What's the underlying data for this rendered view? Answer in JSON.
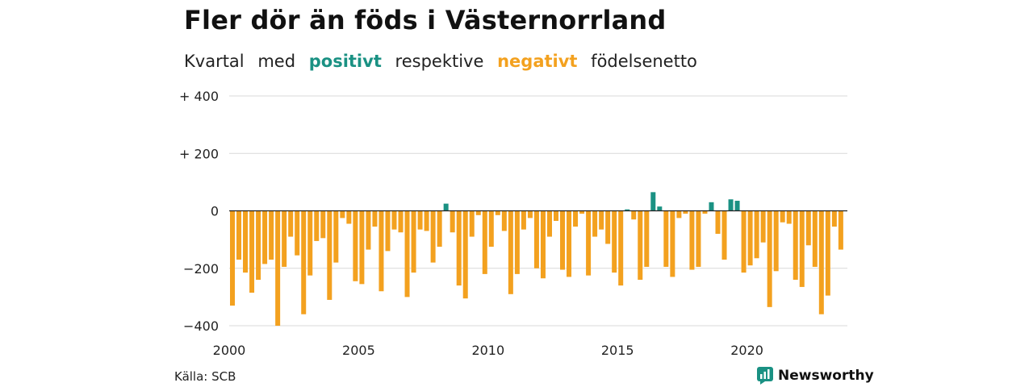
{
  "header": {
    "title": "Fler dör än föds i Västernorrland",
    "subtitle_parts": [
      "Kvartal",
      "med",
      "positivt",
      "respektive",
      "negativt",
      "födelsenetto"
    ]
  },
  "colors": {
    "positive": "#1a9183",
    "negative": "#f3a11f",
    "grid": "#d9d9d9",
    "zero_line": "#222222"
  },
  "footer": {
    "source": "Källa: SCB",
    "brand": "Newsworthy",
    "brand_icon": "newsworthy-logo-icon"
  },
  "chart_data": {
    "type": "bar",
    "title": "Fler dör än föds i Västernorrland",
    "subtitle": "Kvartal med positivt respektive negativt födelsenetto",
    "xlabel": "",
    "ylabel": "",
    "x_start": 2000,
    "periods_per_year": 4,
    "ylim": [
      -400,
      400
    ],
    "yticks": [
      400,
      200,
      0,
      -200,
      -400
    ],
    "ytick_labels": [
      "+ 400",
      "+ 200",
      "0",
      "−200",
      "−400"
    ],
    "xticks": [
      2000,
      2005,
      2010,
      2015,
      2020
    ],
    "xtick_labels": [
      "2000",
      "2005",
      "2010",
      "2015",
      "2020"
    ],
    "grid": true,
    "values": [
      -330,
      -170,
      -215,
      -285,
      -240,
      -185,
      -170,
      -400,
      -195,
      -90,
      -155,
      -360,
      -225,
      -105,
      -95,
      -310,
      -180,
      -25,
      -45,
      -245,
      -255,
      -135,
      -55,
      -280,
      -140,
      -65,
      -75,
      -300,
      -215,
      -65,
      -70,
      -180,
      -125,
      25,
      -75,
      -260,
      -305,
      -90,
      -15,
      -220,
      -125,
      -15,
      -70,
      -290,
      -220,
      -65,
      -25,
      -200,
      -235,
      -90,
      -35,
      -205,
      -230,
      -55,
      -10,
      -225,
      -90,
      -65,
      -115,
      -215,
      -260,
      5,
      -30,
      -240,
      -195,
      65,
      15,
      -195,
      -230,
      -25,
      -10,
      -205,
      -195,
      -10,
      30,
      -80,
      -170,
      40,
      35,
      -215,
      -190,
      -165,
      -110,
      -335,
      -210,
      -40,
      -45,
      -240,
      -265,
      -120,
      -195,
      -360,
      -295,
      -55,
      -135
    ]
  }
}
